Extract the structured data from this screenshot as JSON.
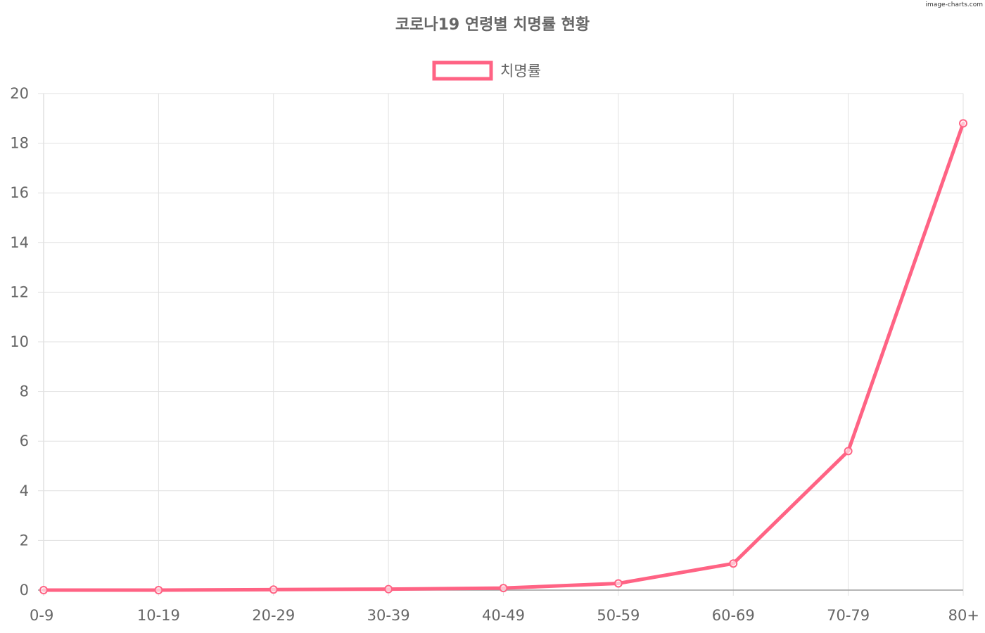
{
  "watermark": "image-charts.com",
  "chart_data": {
    "type": "line",
    "title": "코로나19 연령별 치명률 현황",
    "xlabel": "",
    "ylabel": "",
    "categories": [
      "0-9",
      "10-19",
      "20-29",
      "30-39",
      "40-49",
      "50-59",
      "60-69",
      "70-79",
      "80+"
    ],
    "series": [
      {
        "name": "치명률",
        "values": [
          0,
          0,
          0.02,
          0.04,
          0.08,
          0.27,
          1.07,
          5.6,
          18.8
        ],
        "color": "#ff6384"
      }
    ],
    "ylim": [
      0,
      20
    ],
    "yticks": [
      "0",
      "2",
      "4",
      "6",
      "8",
      "10",
      "12",
      "14",
      "16",
      "18",
      "20"
    ],
    "grid": true,
    "legend_position": "top"
  }
}
